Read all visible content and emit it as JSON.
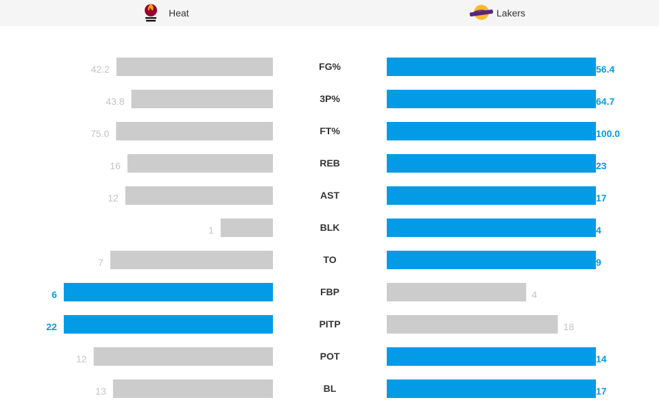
{
  "teams": {
    "left": {
      "name": "Heat",
      "logo": "miami-heat-logo"
    },
    "right": {
      "name": "Lakers",
      "logo": "los-angeles-lakers-logo"
    }
  },
  "colors": {
    "winner": "#039be5",
    "loser": "#cccccc",
    "label": "#333333"
  },
  "chart_data": {
    "type": "bar",
    "orientation": "horizontal-diverging",
    "categories": [
      "FG%",
      "3P%",
      "FT%",
      "REB",
      "AST",
      "BLK",
      "TO",
      "FBP",
      "PITP",
      "POT",
      "BL"
    ],
    "series": [
      {
        "name": "Heat",
        "values": [
          "42.2",
          "43.8",
          "75.0",
          "16",
          "12",
          "1",
          "7",
          "6",
          "22",
          "12",
          "13"
        ]
      },
      {
        "name": "Lakers",
        "values": [
          "56.4",
          "64.7",
          "100.0",
          "23",
          "17",
          "4",
          "9",
          "4",
          "18",
          "14",
          "17"
        ]
      }
    ],
    "highlight": [
      "right",
      "right",
      "right",
      "right",
      "right",
      "right",
      "right",
      "left",
      "left",
      "right",
      "right"
    ]
  }
}
